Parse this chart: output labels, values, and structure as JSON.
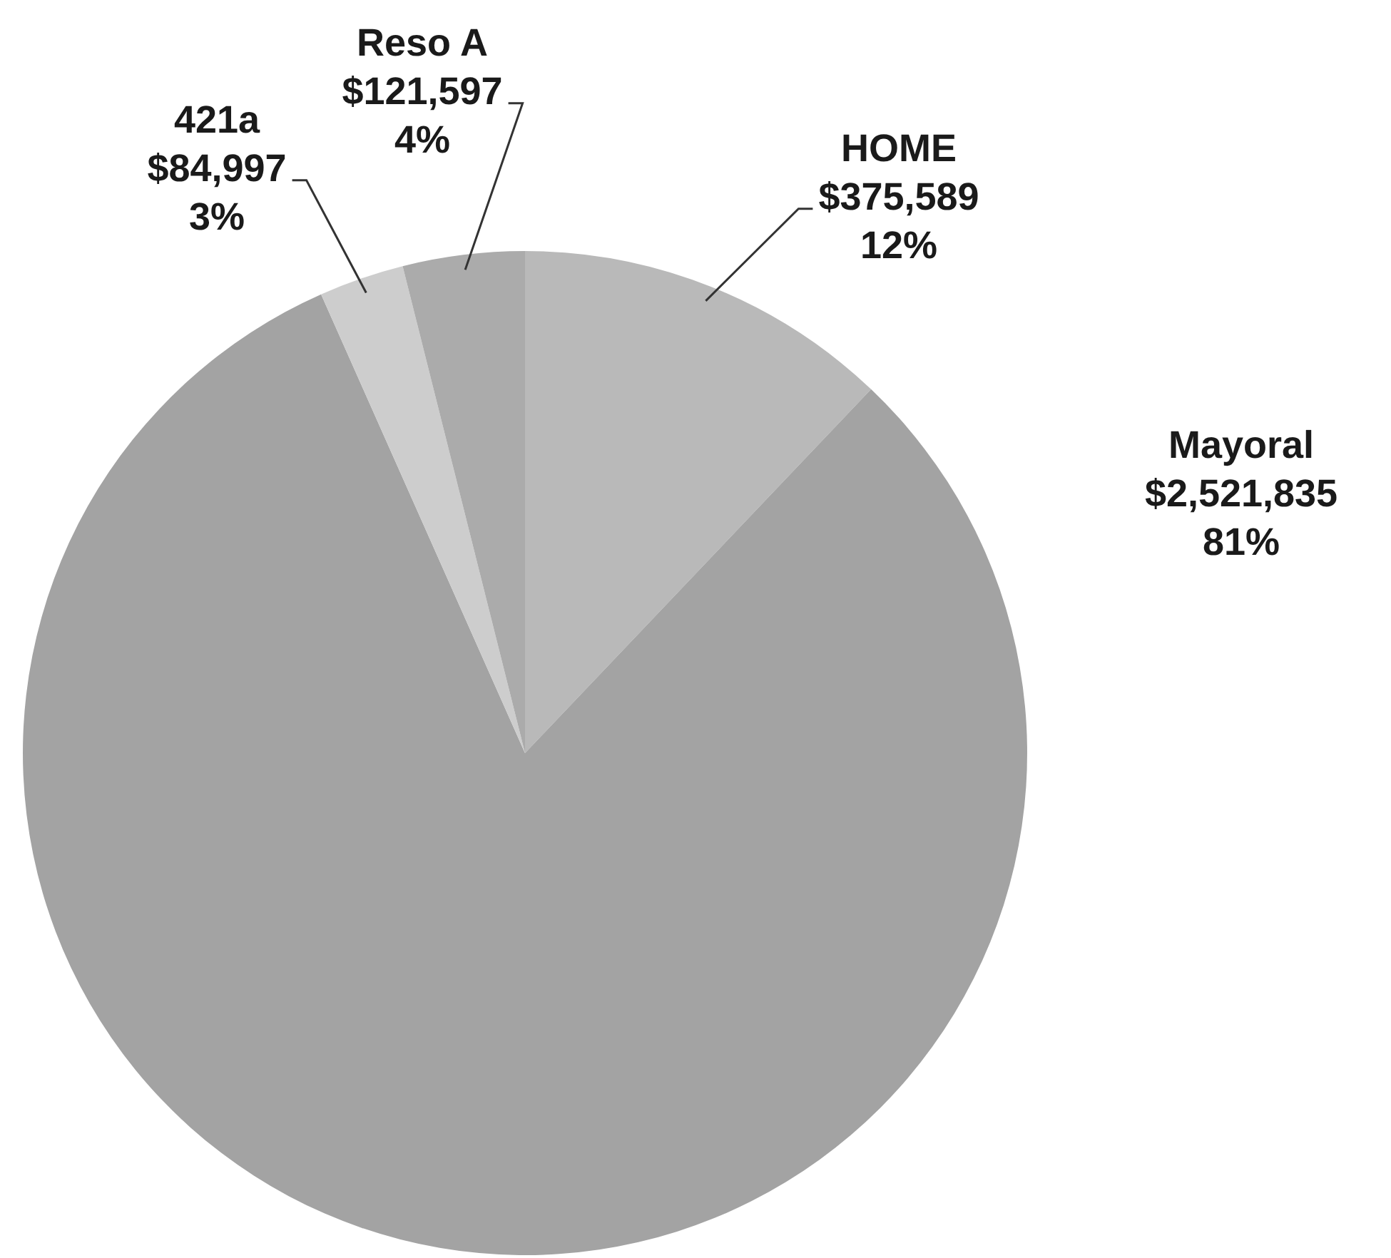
{
  "chart_data": {
    "type": "pie",
    "categories": [
      "HOME",
      "Mayoral",
      "421a",
      "Reso A"
    ],
    "values": [
      375589,
      2521835,
      84997,
      121597
    ],
    "colors": [
      "#b9b9b9",
      "#a3a3a3",
      "#cdcdcd",
      "#ababab"
    ],
    "value_labels": [
      "$375,589\n12%",
      "$2,521,835\n81%",
      "$84,997\n3%",
      "$121,597\n4%"
    ],
    "legend": false
  }
}
